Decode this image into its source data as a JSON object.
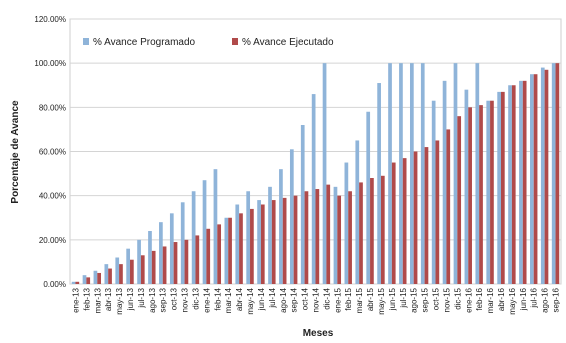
{
  "chart_data": {
    "type": "bar",
    "title": "",
    "xlabel": "Meses",
    "ylabel": "Porcentaje de Avance",
    "ylim": [
      0,
      120
    ],
    "yticks": [
      "0.00%",
      "20.00%",
      "40.00%",
      "60.00%",
      "80.00%",
      "100.00%",
      "120.00%"
    ],
    "grid": true,
    "legend_position": "top-left",
    "categories": [
      "ene-13",
      "feb-13",
      "mar-13",
      "abr-13",
      "may-13",
      "jun-13",
      "jul-13",
      "ago-13",
      "sep-13",
      "oct-13",
      "nov-13",
      "dic-13",
      "ene-14",
      "feb-14",
      "mar-14",
      "abr-14",
      "may-14",
      "jun-14",
      "jul-14",
      "ago-14",
      "sep-14",
      "oct-14",
      "nov-14",
      "dic-14",
      "ene-15",
      "feb-15",
      "mar-15",
      "abr-15",
      "may-15",
      "jun-15",
      "jul-15",
      "ago-15",
      "sep-15",
      "oct-15",
      "nov-15",
      "dic-15",
      "ene-16",
      "feb-16",
      "mar-16",
      "abr-16",
      "may-16",
      "jun-16",
      "jul-16",
      "ago-16",
      "sep-16"
    ],
    "series": [
      {
        "name": "% Avance Programado",
        "color": "#8fb4d9",
        "values": [
          1,
          4,
          6,
          9,
          12,
          16,
          20,
          24,
          28,
          32,
          37,
          42,
          47,
          52,
          30,
          36,
          42,
          38,
          44,
          52,
          61,
          72,
          86,
          100,
          44,
          55,
          65,
          78,
          91,
          100,
          100,
          100,
          100,
          83,
          92,
          100,
          88,
          100,
          83,
          87,
          90,
          92,
          95,
          98,
          100
        ]
      },
      {
        "name": "% Avance Ejecutado",
        "color": "#b04a4a",
        "values": [
          1,
          3,
          5,
          7,
          9,
          11,
          13,
          15,
          17,
          19,
          20,
          22,
          25,
          27,
          30,
          32,
          34,
          36,
          38,
          39,
          40,
          42,
          43,
          45,
          40,
          42,
          46,
          48,
          49,
          55,
          57,
          60,
          62,
          65,
          70,
          76,
          80,
          81,
          83,
          87,
          90,
          92,
          95,
          97,
          100
        ]
      }
    ]
  }
}
